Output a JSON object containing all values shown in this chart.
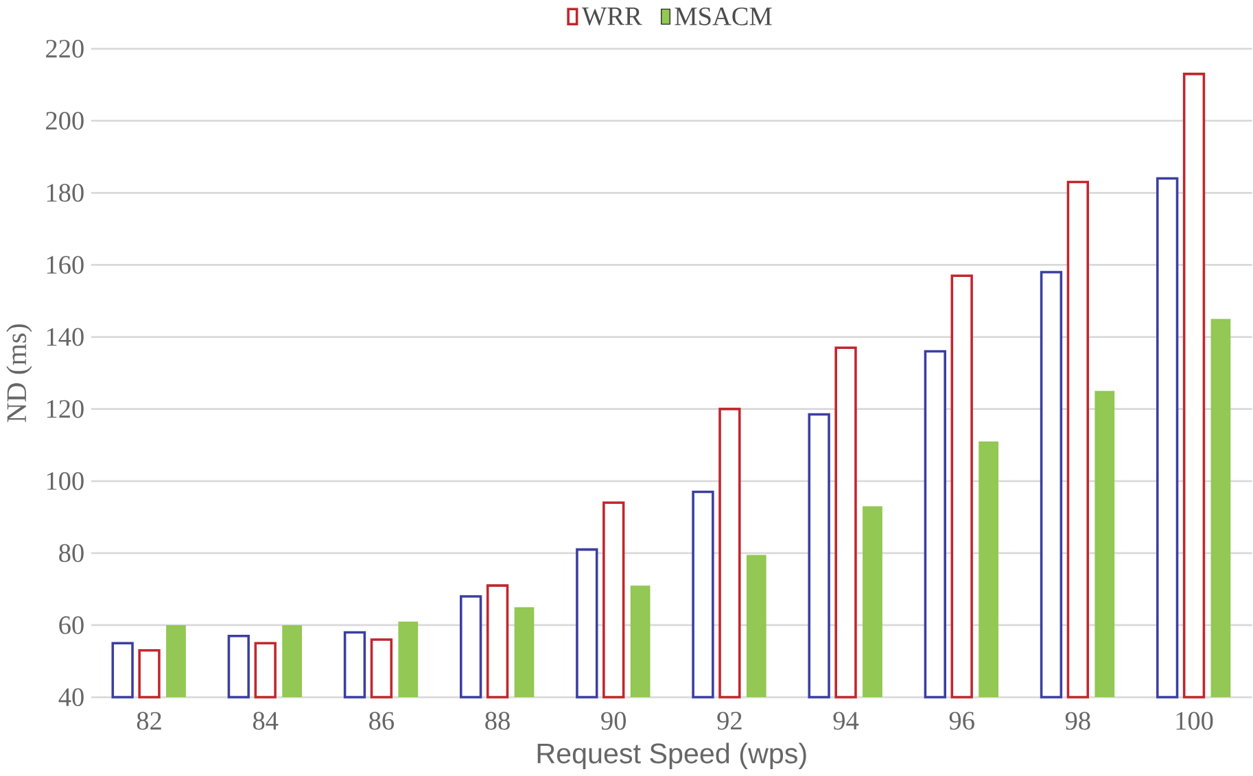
{
  "chart_data": {
    "type": "bar",
    "xlabel": "Request Speed (wps)",
    "ylabel": "ND (ms)",
    "categories": [
      "82",
      "84",
      "86",
      "88",
      "90",
      "92",
      "94",
      "96",
      "98",
      "100"
    ],
    "series": [
      {
        "color": "#3b3fa0",
        "values": [
          55,
          57,
          58,
          68,
          81,
          97,
          118.5,
          136,
          158,
          184
        ]
      },
      {
        "name": "WRR",
        "color": "#c0272d",
        "values": [
          53,
          55,
          56,
          71,
          94,
          120,
          137,
          157,
          183,
          213
        ]
      },
      {
        "name": "MSACM",
        "color": "#92c853",
        "values": [
          60,
          60,
          61,
          65,
          71,
          79.5,
          93,
          111,
          125,
          145
        ]
      }
    ],
    "ylim": [
      40,
      220
    ],
    "yticks": [
      40,
      60,
      80,
      100,
      120,
      140,
      160,
      180,
      200,
      220
    ],
    "grid": "y",
    "legend": "top"
  }
}
